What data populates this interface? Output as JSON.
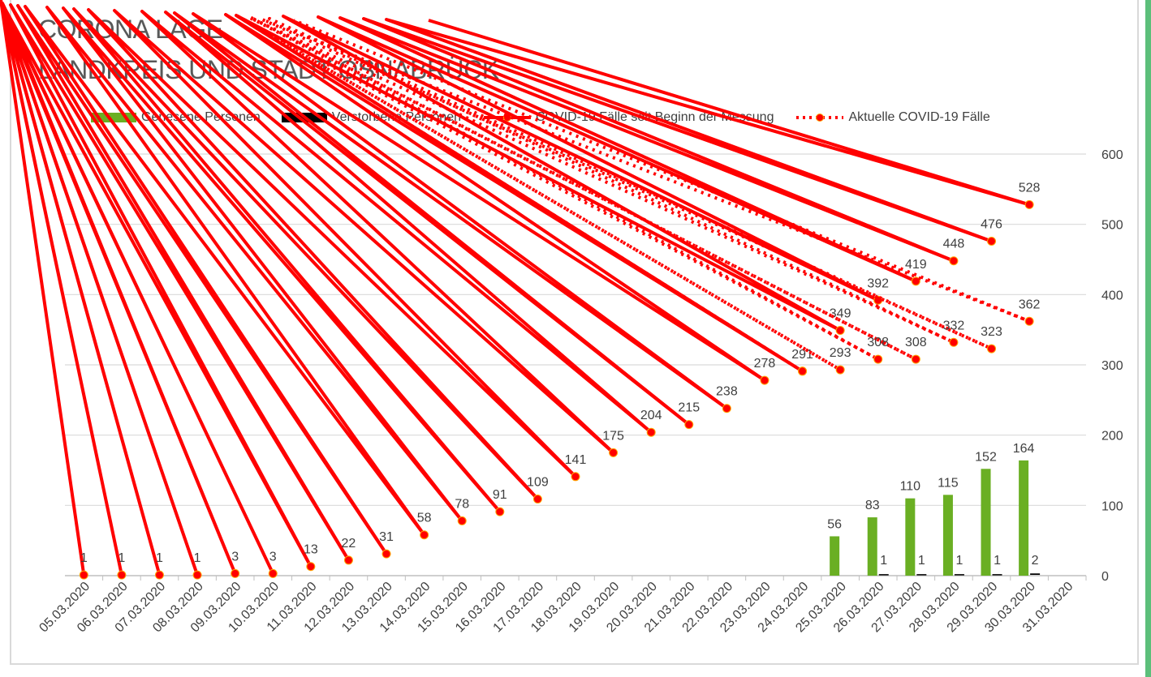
{
  "title_line1": "CORONA LAGE",
  "title_line2": "LANDKREIS UND STADT OSNABRÜCK",
  "colors": {
    "recovered": "#6aaf23",
    "deaths": "#000000",
    "cases": "#ff0000",
    "grid": "#d9d9d9",
    "text": "#404040"
  },
  "chart_data": {
    "type": "bar+line",
    "title": "CORONA LAGE LANDKREIS UND STADT OSNABRÜCK",
    "categories": [
      "05.03.2020",
      "06.03.2020",
      "07.03.2020",
      "08.03.2020",
      "09.03.2020",
      "10.03.2020",
      "11.03.2020",
      "12.03.2020",
      "13.03.2020",
      "14.03.2020",
      "15.03.2020",
      "16.03.2020",
      "17.03.2020",
      "18.03.2020",
      "19.03.2020",
      "20.03.2020",
      "21.03.2020",
      "22.03.2020",
      "23.03.2020",
      "24.03.2020",
      "25.03.2020",
      "26.03.2020",
      "27.03.2020",
      "28.03.2020",
      "29.03.2020",
      "30.03.2020",
      "31.03.2020"
    ],
    "y_axis": {
      "position": "right",
      "ylim": [
        0,
        600
      ],
      "ticks": [
        "0",
        "100",
        "200",
        "300",
        "400",
        "500",
        "600"
      ]
    },
    "legend_position": "top",
    "grid": true,
    "series": [
      {
        "name": "Genesene Personen",
        "type": "bar",
        "values": [
          null,
          null,
          null,
          null,
          null,
          null,
          null,
          null,
          null,
          null,
          null,
          null,
          null,
          null,
          null,
          null,
          null,
          null,
          null,
          null,
          56,
          83,
          110,
          115,
          152,
          164,
          null
        ]
      },
      {
        "name": "Verstorbene Personen",
        "type": "bar",
        "values": [
          null,
          null,
          null,
          null,
          null,
          null,
          null,
          null,
          null,
          null,
          null,
          null,
          null,
          null,
          null,
          null,
          null,
          null,
          null,
          null,
          null,
          1,
          1,
          1,
          1,
          2,
          null
        ]
      },
      {
        "name": "COVID-19 Fälle seit Beginn der Messung",
        "type": "line",
        "values": [
          1,
          1,
          1,
          1,
          3,
          3,
          13,
          22,
          31,
          58,
          78,
          91,
          109,
          141,
          175,
          204,
          215,
          238,
          278,
          291,
          349,
          392,
          419,
          448,
          476,
          528,
          null
        ]
      },
      {
        "name": "Aktuelle COVID-19 Fälle",
        "type": "line-dotted",
        "values": [
          null,
          null,
          null,
          null,
          null,
          null,
          null,
          null,
          null,
          null,
          null,
          null,
          null,
          null,
          null,
          null,
          null,
          null,
          null,
          291,
          293,
          308,
          308,
          332,
          323,
          362,
          null
        ]
      }
    ]
  }
}
